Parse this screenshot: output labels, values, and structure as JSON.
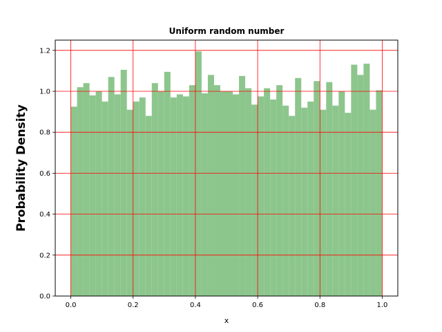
{
  "chart_data": {
    "type": "bar",
    "title": "Uniform random number",
    "xlabel": "x",
    "ylabel": "Probability Density",
    "xlim": [
      -0.05,
      1.05
    ],
    "ylim": [
      0,
      1.25
    ],
    "xticks": [
      "0.0",
      "0.2",
      "0.4",
      "0.6",
      "0.8",
      "1.0"
    ],
    "yticks": [
      "0.0",
      "0.2",
      "0.4",
      "0.6",
      "0.8",
      "1.0",
      "1.2"
    ],
    "grid": true,
    "grid_color": "#ff0000",
    "bar_color": "#8dc68d",
    "bin_edges_start": 0.0,
    "bin_width": 0.02,
    "values": [
      0.925,
      1.02,
      1.04,
      0.98,
      1.0,
      0.95,
      1.07,
      0.985,
      1.105,
      0.91,
      0.95,
      0.97,
      0.88,
      1.04,
      1.0,
      1.095,
      0.97,
      0.985,
      0.975,
      1.03,
      1.195,
      0.99,
      1.08,
      1.03,
      1.0,
      1.0,
      0.985,
      1.075,
      1.015,
      0.935,
      0.975,
      1.015,
      0.96,
      1.03,
      0.93,
      0.88,
      1.065,
      0.92,
      0.95,
      1.05,
      0.91,
      1.045,
      0.93,
      1.0,
      0.895,
      1.13,
      1.08,
      1.135,
      0.91,
      1.005
    ]
  }
}
